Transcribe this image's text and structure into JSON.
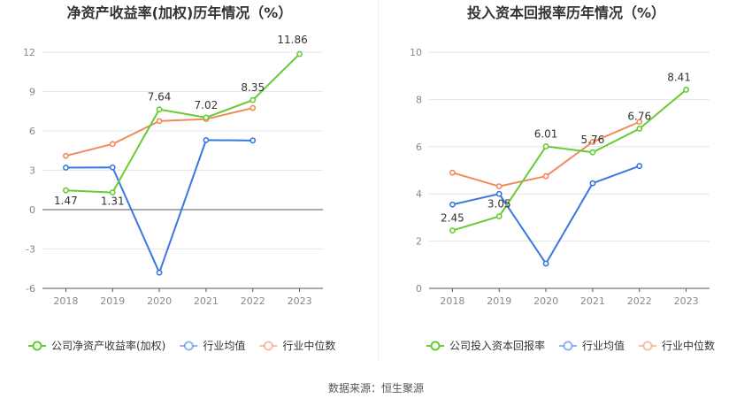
{
  "source_text": "数据来源：恒生聚源",
  "colors": {
    "company": "#66cc33",
    "avg": "#3a78e0",
    "median": "#f08a5d",
    "grid": "#e6e6e6",
    "axis": "#555555",
    "tick": "#888888",
    "title": "#333333"
  },
  "chart_data": [
    {
      "type": "line",
      "title": "净资产收益率(加权)历年情况（%）",
      "categories": [
        "2018",
        "2019",
        "2020",
        "2021",
        "2022",
        "2023"
      ],
      "yticks": [
        -6,
        -3,
        0,
        3,
        6,
        9,
        12
      ],
      "ylim": [
        -6,
        12
      ],
      "legend_position": "bottom-left",
      "series": [
        {
          "name": "公司净资产收益率(加权)",
          "key": "company",
          "values": [
            1.47,
            1.31,
            7.64,
            7.02,
            8.35,
            11.86
          ],
          "labels": [
            "1.47",
            "1.31",
            "7.64",
            "7.02",
            "8.35",
            "11.86"
          ]
        },
        {
          "name": "行业均值",
          "key": "avg",
          "values": [
            3.2,
            3.22,
            -4.8,
            5.3,
            5.27,
            null
          ]
        },
        {
          "name": "行业中位数",
          "key": "median",
          "values": [
            4.1,
            5.0,
            6.75,
            6.9,
            7.75,
            null
          ]
        }
      ]
    },
    {
      "type": "line",
      "title": "投入资本回报率历年情况（%）",
      "categories": [
        "2018",
        "2019",
        "2020",
        "2021",
        "2022",
        "2023"
      ],
      "yticks": [
        0,
        2,
        4,
        6,
        8,
        10
      ],
      "ylim": [
        0,
        10
      ],
      "legend_position": "bottom-left",
      "series": [
        {
          "name": "公司投入资本回报率",
          "key": "company",
          "values": [
            2.45,
            3.05,
            6.01,
            5.76,
            6.76,
            8.41
          ],
          "labels": [
            "2.45",
            "3.05",
            "6.01",
            "5.76",
            "6.76",
            "8.41"
          ]
        },
        {
          "name": "行业均值",
          "key": "avg",
          "values": [
            3.55,
            4.0,
            1.05,
            4.45,
            5.18,
            null
          ]
        },
        {
          "name": "行业中位数",
          "key": "median",
          "values": [
            4.9,
            4.32,
            4.75,
            6.2,
            7.05,
            null
          ]
        }
      ]
    }
  ]
}
